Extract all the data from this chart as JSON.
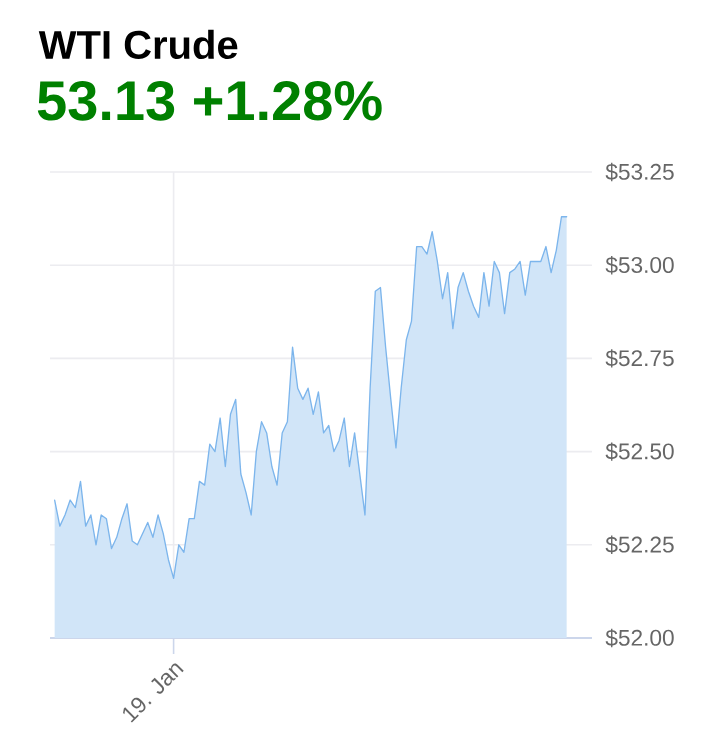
{
  "chart_data": {
    "type": "area",
    "title": "WTI Crude",
    "subtitle": "53.13 +1.28%",
    "categories": [
      null,
      null,
      null,
      null,
      null,
      null,
      null,
      null,
      null,
      null,
      null,
      null,
      null,
      null,
      null,
      null,
      null,
      null,
      null,
      null,
      null,
      null,
      null,
      "19. Jan",
      null,
      null,
      null,
      null,
      null,
      null,
      null,
      null,
      null,
      null,
      null,
      null,
      null,
      null,
      null,
      null,
      null,
      null,
      null,
      null,
      null,
      null,
      null,
      null,
      null,
      null,
      null,
      null,
      null,
      null,
      null,
      null,
      null,
      null,
      null,
      null,
      null,
      null,
      null,
      null,
      null,
      null,
      null,
      null,
      null,
      null,
      null,
      null,
      null,
      null,
      null,
      null,
      null,
      null,
      null,
      null,
      null,
      null,
      null,
      null,
      null,
      null,
      null,
      null,
      null,
      null,
      null,
      null,
      null,
      null,
      null,
      null,
      null,
      null,
      null,
      null
    ],
    "ylim": [
      52.0,
      53.25
    ],
    "yticks": [
      {
        "value": 52.0,
        "label": "$52.00"
      },
      {
        "value": 52.25,
        "label": "$52.25"
      },
      {
        "value": 52.5,
        "label": "$52.50"
      },
      {
        "value": 52.75,
        "label": "$52.75"
      },
      {
        "value": 53.0,
        "label": "$53.00"
      },
      {
        "value": 53.25,
        "label": "$53.25"
      }
    ],
    "grid": true,
    "series": [
      {
        "color": "#7cb5ec",
        "values": [
          52.37,
          52.3,
          52.33,
          52.37,
          52.35,
          52.42,
          52.3,
          52.33,
          52.25,
          52.33,
          52.32,
          52.24,
          52.27,
          52.32,
          52.36,
          52.26,
          52.25,
          52.28,
          52.31,
          52.27,
          52.33,
          52.28,
          52.21,
          52.16,
          52.25,
          52.23,
          52.32,
          52.32,
          52.42,
          52.41,
          52.52,
          52.5,
          52.59,
          52.46,
          52.6,
          52.64,
          52.44,
          52.39,
          52.33,
          52.5,
          52.58,
          52.55,
          52.46,
          52.41,
          52.55,
          52.58,
          52.78,
          52.67,
          52.64,
          52.67,
          52.6,
          52.66,
          52.55,
          52.57,
          52.5,
          52.53,
          52.59,
          52.46,
          52.55,
          52.44,
          52.33,
          52.67,
          52.93,
          52.94,
          52.78,
          52.64,
          52.51,
          52.67,
          52.8,
          52.85,
          53.05,
          53.05,
          53.03,
          53.09,
          53.01,
          52.91,
          52.98,
          52.83,
          52.94,
          52.98,
          52.93,
          52.89,
          52.86,
          52.98,
          52.89,
          53.01,
          52.98,
          52.87,
          52.98,
          52.99,
          53.01,
          52.92,
          53.01,
          53.01,
          53.01,
          53.05,
          52.98,
          53.04,
          53.13,
          53.13
        ]
      }
    ]
  }
}
